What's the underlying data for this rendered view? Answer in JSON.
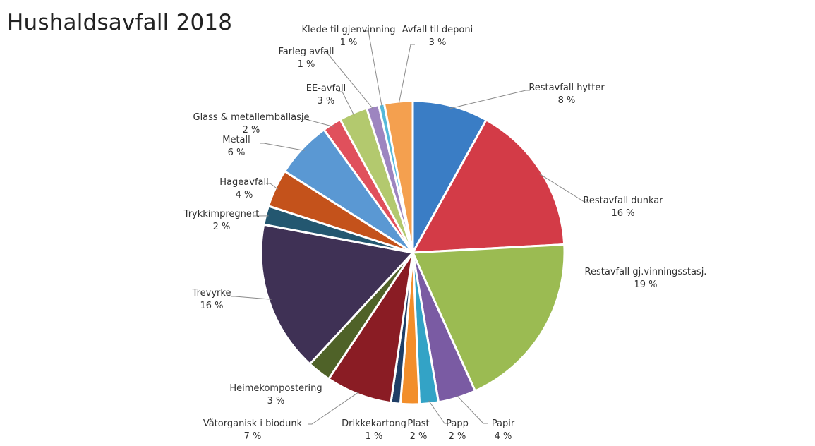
{
  "chart_data": {
    "type": "pie",
    "title": "Hushaldsavfall 2018",
    "value_unit": "%",
    "start_angle_deg": 0,
    "direction": "clockwise",
    "slices": [
      {
        "name": "Restavfall hytter",
        "value": 8,
        "display": "8 %",
        "color": "#3a7dc5"
      },
      {
        "name": "Restavfall dunkar",
        "value": 16,
        "display": "16 %",
        "color": "#d33b47"
      },
      {
        "name": "Restavfall gj.vinningsstasj.",
        "value": 19,
        "display": "19 %",
        "color": "#9bbb52"
      },
      {
        "name": "Papir",
        "value": 4,
        "display": "4 %",
        "color": "#7a5ba3"
      },
      {
        "name": "Papp",
        "value": 2,
        "display": "2 %",
        "color": "#33a3c6"
      },
      {
        "name": "Plast",
        "value": 2,
        "display": "2 %",
        "color": "#f28e2b"
      },
      {
        "name": "Drikkekartong",
        "value": 1,
        "display": "1 %",
        "color": "#1f3e66"
      },
      {
        "name": "Våtorganisk i biodunk",
        "value": 7,
        "display": "7 %",
        "color": "#8a1c24"
      },
      {
        "name": "Heimekompostering",
        "value": 2.5,
        "display": "3 %",
        "color": "#4f6228"
      },
      {
        "name": "Trevyrke",
        "value": 16,
        "display": "16 %",
        "color": "#3f3155"
      },
      {
        "name": "Trykkimpregnert",
        "value": 2,
        "display": "2 %",
        "color": "#235770"
      },
      {
        "name": "Hageavfall",
        "value": 4,
        "display": "4 %",
        "color": "#c4521b"
      },
      {
        "name": "Metall",
        "value": 6,
        "display": "6 %",
        "color": "#5a98d3"
      },
      {
        "name": "Glass & metallemballasje",
        "value": 2,
        "display": "2 %",
        "color": "#e0505c"
      },
      {
        "name": "EE-avfall",
        "value": 3,
        "display": "3 %",
        "color": "#b3c96e"
      },
      {
        "name": "Farleg avfall",
        "value": 1.3,
        "display": "1 %",
        "color": "#9d85c0"
      },
      {
        "name": "Klede til gjenvinning",
        "value": 0.6,
        "display": "1 %",
        "color": "#55b9da"
      },
      {
        "name": "Avfall til deponi",
        "value": 3,
        "display": "3 %",
        "color": "#f4a04f"
      }
    ]
  }
}
